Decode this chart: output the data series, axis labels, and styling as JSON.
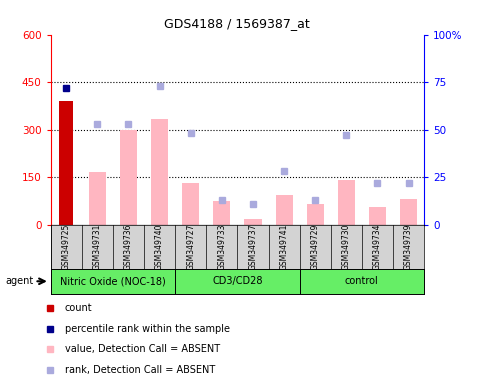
{
  "title": "GDS4188 / 1569387_at",
  "samples": [
    "GSM349725",
    "GSM349731",
    "GSM349736",
    "GSM349740",
    "GSM349727",
    "GSM349733",
    "GSM349737",
    "GSM349741",
    "GSM349729",
    "GSM349730",
    "GSM349734",
    "GSM349739"
  ],
  "groups": [
    {
      "name": "Nitric Oxide (NOC-18)",
      "start": 0,
      "end": 4
    },
    {
      "name": "CD3/CD28",
      "start": 4,
      "end": 8
    },
    {
      "name": "control",
      "start": 8,
      "end": 12
    }
  ],
  "count_values": [
    390,
    0,
    0,
    0,
    0,
    0,
    0,
    0,
    0,
    0,
    0,
    0
  ],
  "percentile_rank_values": [
    72,
    0,
    0,
    0,
    0,
    0,
    0,
    0,
    0,
    0,
    0,
    0
  ],
  "absent_value_bars": [
    0,
    165,
    300,
    335,
    130,
    75,
    18,
    95,
    65,
    140,
    55,
    80
  ],
  "absent_rank_dots": [
    0,
    53,
    53,
    73,
    48,
    13,
    11,
    28,
    13,
    47,
    22,
    22
  ],
  "ylim_left": [
    0,
    600
  ],
  "ylim_right": [
    0,
    100
  ],
  "yticks_left": [
    0,
    150,
    300,
    450,
    600
  ],
  "yticks_right": [
    0,
    25,
    50,
    75,
    100
  ],
  "ytick_labels_right": [
    "0",
    "25",
    "50",
    "75",
    "100%"
  ],
  "count_color": "#cc0000",
  "percentile_color": "#00008B",
  "absent_bar_color": "#FFB6C1",
  "absent_dot_color": "#AAAADD",
  "group_color": "#66EE66",
  "sample_bg_color": "#D3D3D3",
  "plot_bg": "#FFFFFF",
  "legend_items": [
    {
      "color": "#cc0000",
      "label": "count"
    },
    {
      "color": "#00008B",
      "label": "percentile rank within the sample"
    },
    {
      "color": "#FFB6C1",
      "label": "value, Detection Call = ABSENT"
    },
    {
      "color": "#AAAADD",
      "label": "rank, Detection Call = ABSENT"
    }
  ]
}
